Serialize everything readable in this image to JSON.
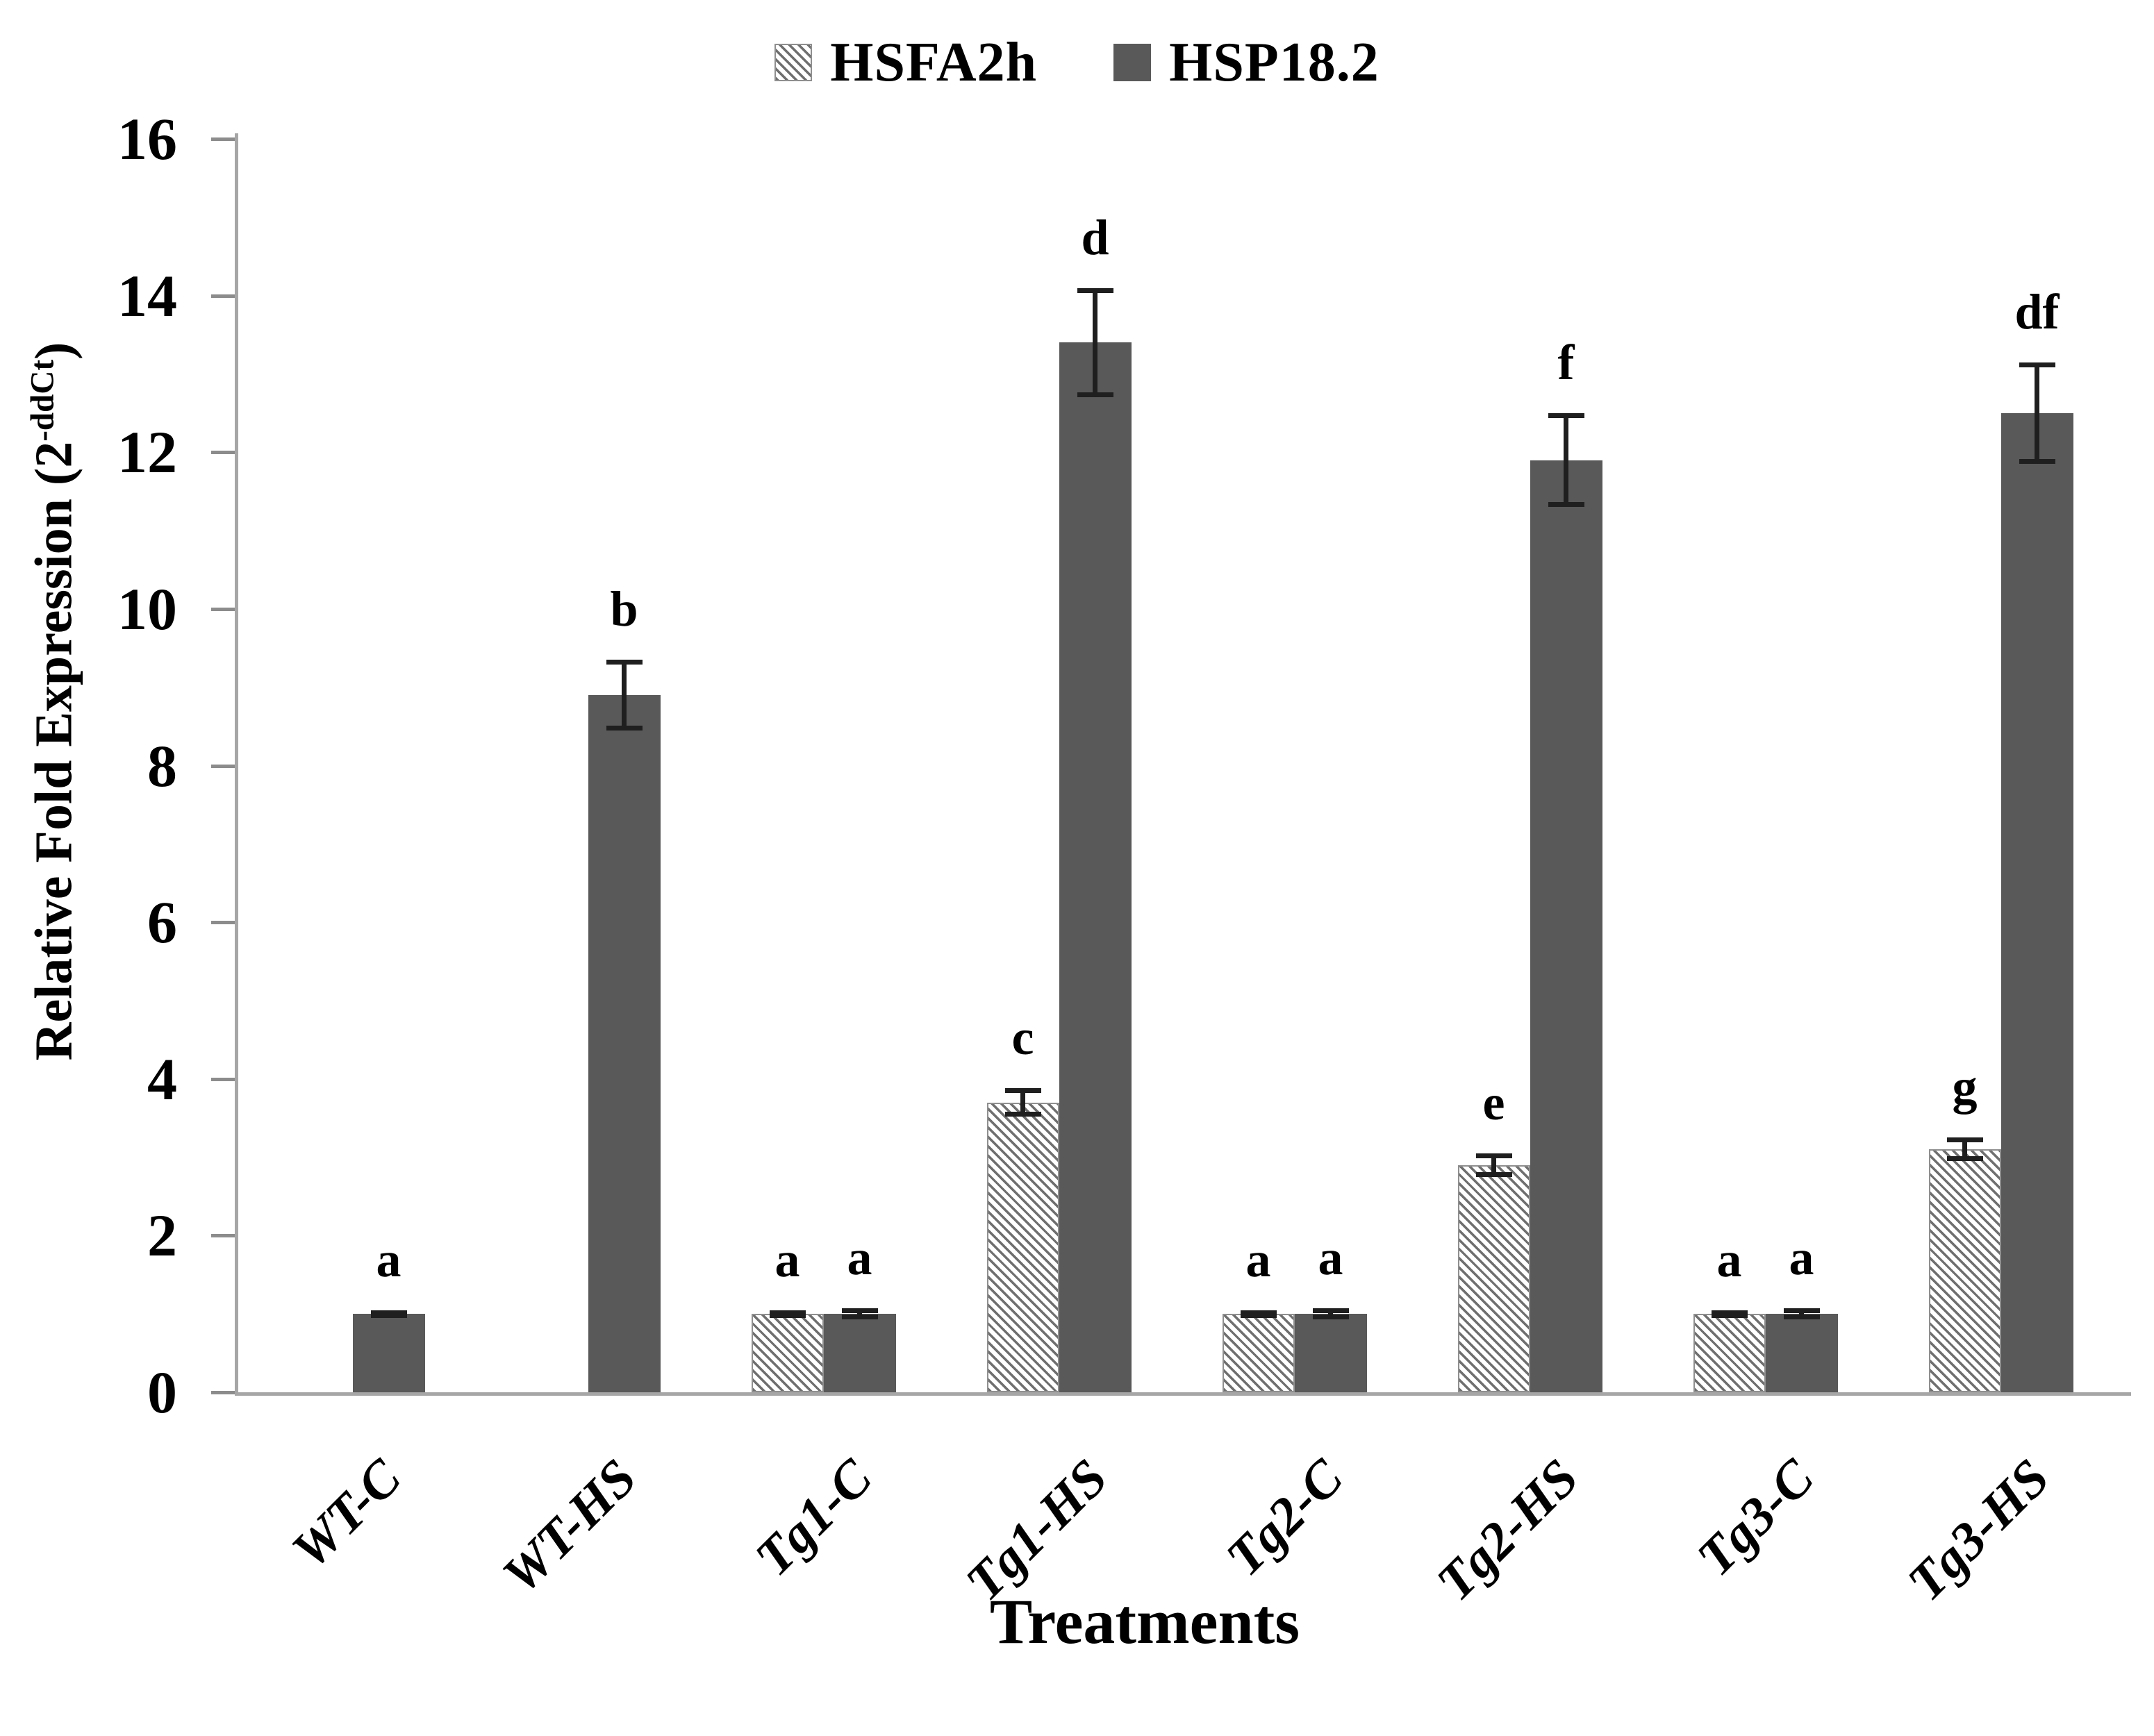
{
  "legend": {
    "series1": "HSFA2h",
    "series2": "HSP18.2"
  },
  "axes": {
    "y_title_base": "Relative Fold Expression (2",
    "y_title_sup": "-ddCt",
    "y_title_close": ")",
    "x_title": "Treatments"
  },
  "chart_data": {
    "type": "bar",
    "title": "",
    "xlabel": "Treatments",
    "ylabel": "Relative Fold Expression (2^-ddCt)",
    "categories": [
      "WT-C",
      "WT-HS",
      "Tg1-C",
      "Tg1-HS",
      "Tg2-C",
      "Tg2-HS",
      "Tg3-C",
      "Tg3-HS"
    ],
    "series": [
      {
        "name": "HSFA2h",
        "style": "hatched",
        "values": [
          null,
          null,
          1.0,
          3.7,
          1.0,
          2.9,
          1.0,
          3.1
        ],
        "errors": [
          null,
          null,
          0.05,
          0.18,
          0.05,
          0.15,
          0.05,
          0.15
        ],
        "letters": [
          null,
          null,
          "a",
          "c",
          "a",
          "e",
          "a",
          "g"
        ]
      },
      {
        "name": "HSP18.2",
        "style": "solid",
        "values": [
          1.0,
          8.9,
          1.0,
          13.4,
          1.0,
          11.9,
          1.0,
          12.5
        ],
        "errors": [
          0.05,
          0.45,
          0.07,
          0.7,
          0.07,
          0.6,
          0.07,
          0.65
        ],
        "letters": [
          "a",
          "b",
          "a",
          "d",
          "a",
          "f",
          "a",
          "df"
        ]
      }
    ],
    "ylim": [
      0,
      16
    ],
    "ytick_step": 2,
    "yticks": [
      0,
      2,
      4,
      6,
      8,
      10,
      12,
      14,
      16
    ],
    "grid": false,
    "legend_position": "top-center",
    "error_bars": true,
    "colors": {
      "solid_fill": "#595959",
      "hatch_line": "#6f6f6f",
      "hatch_bg": "#ffffff",
      "axis_line": "#a6a6a6",
      "tick_mark": "#8c8c8c",
      "error_bar": "#1f1f1f",
      "text": "#000000"
    }
  }
}
